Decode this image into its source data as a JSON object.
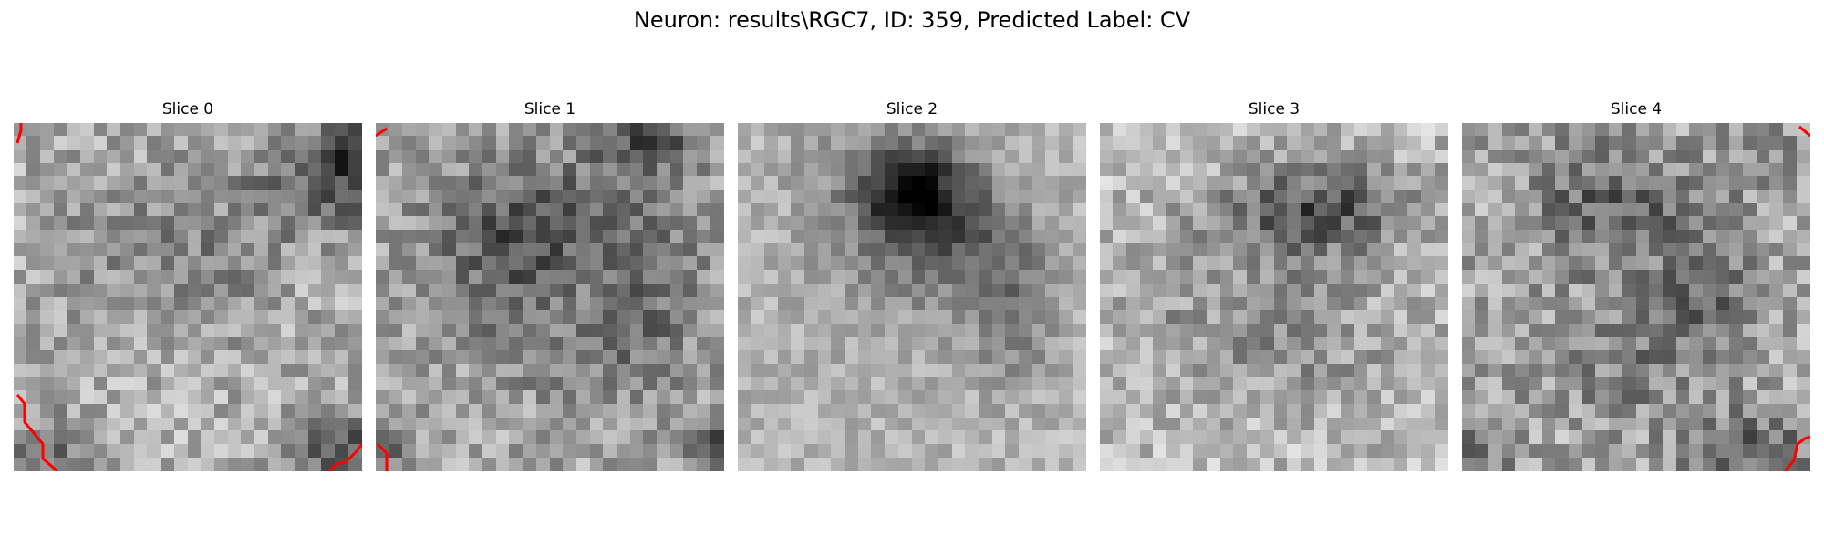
{
  "figure": {
    "title": "Neuron: results\\RGC7, ID: 359, Predicted Label: CV"
  },
  "overlay_color": "#ff0000",
  "slices": [
    {
      "title": "Slice 0"
    },
    {
      "title": "Slice 1"
    },
    {
      "title": "Slice 2"
    },
    {
      "title": "Slice 3"
    },
    {
      "title": "Slice 4"
    }
  ]
}
